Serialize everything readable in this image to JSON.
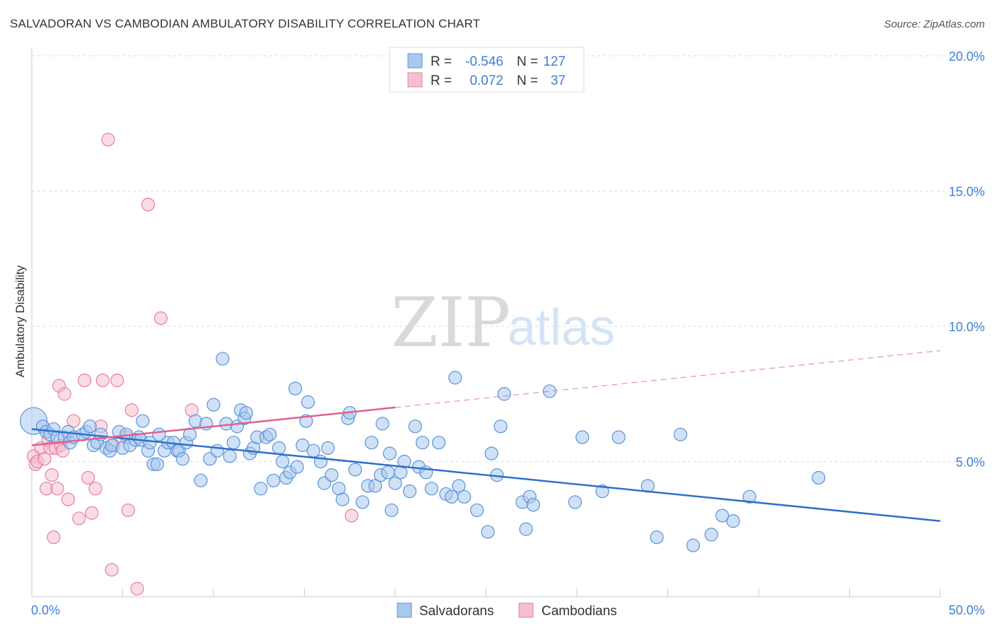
{
  "title": "SALVADORAN VS CAMBODIAN AMBULATORY DISABILITY CORRELATION CHART",
  "source": "Source: ZipAtlas.com",
  "watermark": {
    "zip": "ZIP",
    "atlas": "atlas"
  },
  "colors": {
    "blue_fill": "#a9c8ee",
    "blue_stroke": "#5a93d8",
    "blue_line": "#2f6fcc",
    "pink_fill": "#f6bfd0",
    "pink_stroke": "#e57fa0",
    "pink_line": "#e0608e",
    "tick_text": "#3d7fd6",
    "grid": "#dddddd"
  },
  "legend": {
    "rows": [
      {
        "r_label": "R =",
        "r_value": "-0.546",
        "n_label": "N =",
        "n_value": "127"
      },
      {
        "r_label": "R =",
        "r_value": "0.072",
        "n_label": "N =",
        "n_value": "37"
      }
    ]
  },
  "bottom_legend": [
    "Salvadorans",
    "Cambodians"
  ],
  "chart_data": {
    "type": "scatter",
    "title": "SALVADORAN VS CAMBODIAN AMBULATORY DISABILITY CORRELATION CHART",
    "xlabel": "",
    "ylabel": "Ambulatory Disability",
    "xlim": [
      0,
      50
    ],
    "ylim": [
      0,
      20
    ],
    "x_tick_labels": [
      "0.0%",
      "50.0%"
    ],
    "y_ticks": [
      5,
      10,
      15,
      20
    ],
    "y_tick_labels": [
      "5.0%",
      "10.0%",
      "15.0%",
      "20.0%"
    ],
    "grid": true,
    "legend_position": "top-center",
    "series": [
      {
        "name": "Salvadorans",
        "r": -0.546,
        "n": 127,
        "trend": {
          "x0": 0,
          "y0": 6.2,
          "x1": 50,
          "y1": 2.8,
          "solid_to": 50
        },
        "points": [
          [
            0.1,
            6.5
          ],
          [
            0.6,
            6.3
          ],
          [
            0.8,
            6.1
          ],
          [
            1.0,
            6.0
          ],
          [
            1.2,
            6.2
          ],
          [
            1.4,
            5.9
          ],
          [
            1.8,
            5.9
          ],
          [
            2.0,
            6.1
          ],
          [
            2.1,
            5.7
          ],
          [
            2.3,
            5.9
          ],
          [
            2.8,
            6.0
          ],
          [
            3.0,
            6.1
          ],
          [
            3.2,
            6.3
          ],
          [
            3.4,
            5.6
          ],
          [
            3.6,
            5.7
          ],
          [
            3.8,
            6.0
          ],
          [
            4.1,
            5.5
          ],
          [
            4.3,
            5.4
          ],
          [
            4.4,
            5.6
          ],
          [
            4.8,
            6.1
          ],
          [
            5.0,
            5.5
          ],
          [
            5.2,
            6.0
          ],
          [
            5.4,
            5.6
          ],
          [
            5.7,
            5.8
          ],
          [
            5.9,
            5.9
          ],
          [
            6.0,
            5.8
          ],
          [
            6.1,
            6.5
          ],
          [
            6.4,
            5.4
          ],
          [
            6.5,
            5.7
          ],
          [
            6.7,
            4.9
          ],
          [
            6.9,
            4.9
          ],
          [
            7.0,
            6.0
          ],
          [
            7.3,
            5.4
          ],
          [
            7.5,
            5.7
          ],
          [
            7.8,
            5.7
          ],
          [
            8.0,
            5.4
          ],
          [
            8.1,
            5.4
          ],
          [
            8.3,
            5.1
          ],
          [
            8.5,
            5.7
          ],
          [
            8.7,
            6.0
          ],
          [
            9.0,
            6.5
          ],
          [
            9.3,
            4.3
          ],
          [
            9.6,
            6.4
          ],
          [
            9.8,
            5.1
          ],
          [
            10.0,
            7.1
          ],
          [
            10.2,
            5.4
          ],
          [
            10.5,
            8.8
          ],
          [
            10.7,
            6.4
          ],
          [
            10.9,
            5.2
          ],
          [
            11.1,
            5.7
          ],
          [
            11.3,
            6.3
          ],
          [
            11.5,
            6.9
          ],
          [
            11.7,
            6.6
          ],
          [
            11.8,
            6.8
          ],
          [
            12.0,
            5.3
          ],
          [
            12.2,
            5.5
          ],
          [
            12.4,
            5.9
          ],
          [
            12.6,
            4.0
          ],
          [
            12.9,
            5.9
          ],
          [
            13.1,
            6.0
          ],
          [
            13.3,
            4.3
          ],
          [
            13.6,
            5.5
          ],
          [
            13.8,
            5.0
          ],
          [
            14.0,
            4.4
          ],
          [
            14.2,
            4.6
          ],
          [
            14.5,
            7.7
          ],
          [
            14.6,
            4.8
          ],
          [
            14.9,
            5.6
          ],
          [
            15.1,
            6.5
          ],
          [
            15.2,
            7.2
          ],
          [
            15.5,
            5.4
          ],
          [
            15.9,
            5.0
          ],
          [
            16.1,
            4.2
          ],
          [
            16.3,
            5.5
          ],
          [
            16.5,
            4.5
          ],
          [
            16.9,
            4.0
          ],
          [
            17.1,
            3.6
          ],
          [
            17.4,
            6.6
          ],
          [
            17.5,
            6.8
          ],
          [
            17.8,
            4.7
          ],
          [
            18.2,
            3.5
          ],
          [
            18.5,
            4.1
          ],
          [
            18.7,
            5.7
          ],
          [
            18.9,
            4.1
          ],
          [
            19.2,
            4.5
          ],
          [
            19.3,
            6.4
          ],
          [
            19.6,
            4.6
          ],
          [
            19.7,
            5.3
          ],
          [
            19.8,
            3.2
          ],
          [
            20.0,
            4.2
          ],
          [
            20.3,
            4.6
          ],
          [
            20.5,
            5.0
          ],
          [
            20.8,
            3.9
          ],
          [
            21.1,
            6.3
          ],
          [
            21.3,
            4.8
          ],
          [
            21.5,
            5.7
          ],
          [
            21.7,
            4.6
          ],
          [
            22.0,
            4.0
          ],
          [
            22.4,
            5.7
          ],
          [
            22.8,
            3.8
          ],
          [
            23.1,
            3.7
          ],
          [
            23.3,
            8.1
          ],
          [
            23.5,
            4.1
          ],
          [
            23.8,
            3.7
          ],
          [
            24.5,
            3.2
          ],
          [
            25.1,
            2.4
          ],
          [
            25.3,
            5.3
          ],
          [
            25.6,
            4.5
          ],
          [
            25.8,
            6.3
          ],
          [
            26.0,
            7.5
          ],
          [
            27.0,
            3.5
          ],
          [
            27.2,
            2.5
          ],
          [
            27.4,
            3.7
          ],
          [
            27.6,
            3.4
          ],
          [
            28.5,
            7.6
          ],
          [
            29.9,
            3.5
          ],
          [
            30.3,
            5.9
          ],
          [
            31.4,
            3.9
          ],
          [
            32.3,
            5.9
          ],
          [
            33.9,
            4.1
          ],
          [
            34.4,
            2.2
          ],
          [
            35.7,
            6.0
          ],
          [
            36.4,
            1.9
          ],
          [
            37.4,
            2.3
          ],
          [
            38.0,
            3.0
          ],
          [
            38.6,
            2.8
          ],
          [
            39.5,
            3.7
          ],
          [
            43.3,
            4.4
          ]
        ]
      },
      {
        "name": "Cambodians",
        "r": 0.072,
        "n": 37,
        "trend": {
          "x0": 0,
          "y0": 5.6,
          "x1": 50,
          "y1": 9.1,
          "solid_to": 20
        },
        "points": [
          [
            0.1,
            5.2
          ],
          [
            0.2,
            4.9
          ],
          [
            0.3,
            5.0
          ],
          [
            0.5,
            5.5
          ],
          [
            0.7,
            5.1
          ],
          [
            0.8,
            4.0
          ],
          [
            0.9,
            5.8
          ],
          [
            1.0,
            5.5
          ],
          [
            1.1,
            4.5
          ],
          [
            1.2,
            2.2
          ],
          [
            1.3,
            5.5
          ],
          [
            1.4,
            4.0
          ],
          [
            1.5,
            7.8
          ],
          [
            1.6,
            5.6
          ],
          [
            1.7,
            5.4
          ],
          [
            1.8,
            7.5
          ],
          [
            2.0,
            3.6
          ],
          [
            2.3,
            6.5
          ],
          [
            2.6,
            2.9
          ],
          [
            2.9,
            8.0
          ],
          [
            3.1,
            4.4
          ],
          [
            3.3,
            3.1
          ],
          [
            3.5,
            4.0
          ],
          [
            3.8,
            6.3
          ],
          [
            3.9,
            8.0
          ],
          [
            4.2,
            16.9
          ],
          [
            4.4,
            1.0
          ],
          [
            4.5,
            5.6
          ],
          [
            4.7,
            8.0
          ],
          [
            5.2,
            5.9
          ],
          [
            5.3,
            3.2
          ],
          [
            5.5,
            6.9
          ],
          [
            5.8,
            0.3
          ],
          [
            6.4,
            14.5
          ],
          [
            7.1,
            10.3
          ],
          [
            8.8,
            6.9
          ],
          [
            17.6,
            3.0
          ]
        ]
      }
    ]
  }
}
